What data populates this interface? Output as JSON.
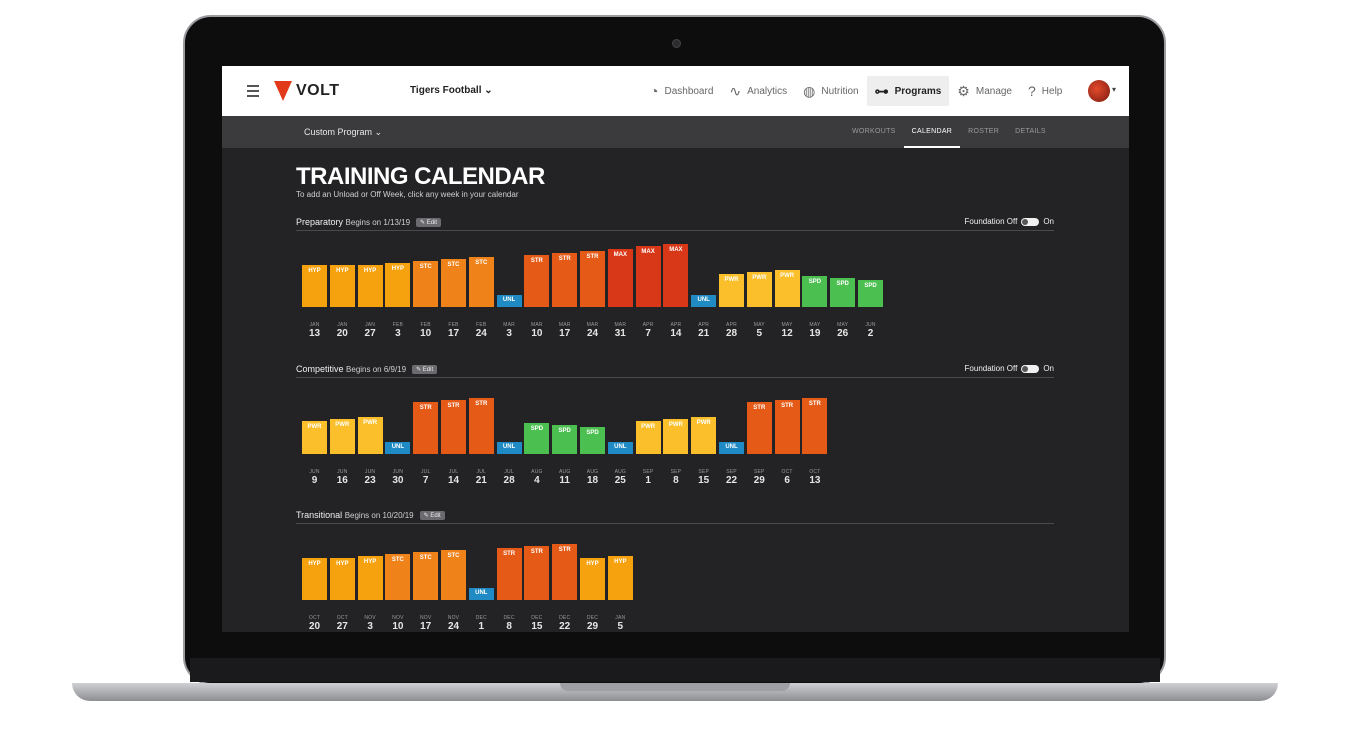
{
  "nav": {
    "brand": "VOLT",
    "team": "Tigers Football ⌄",
    "items": [
      {
        "label": "Dashboard",
        "icon": "◔",
        "name": "dashboard"
      },
      {
        "label": "Analytics",
        "icon": "∿",
        "name": "analytics"
      },
      {
        "label": "Nutrition",
        "icon": "◍",
        "name": "nutrition"
      },
      {
        "label": "Programs",
        "icon": "⊶",
        "name": "programs"
      },
      {
        "label": "Manage",
        "icon": "⚙",
        "name": "manage"
      },
      {
        "label": "Help",
        "icon": "?",
        "name": "help"
      }
    ],
    "active": "Programs"
  },
  "subnav": {
    "program": "Custom Program ⌄",
    "tabs": [
      "WORKOUTS",
      "CALENDAR",
      "ROSTER",
      "DETAILS"
    ],
    "active_tab": "CALENDAR"
  },
  "page": {
    "title": "TRAINING CALENDAR",
    "subtitle": "To add an Unload or Off Week, click any week in your calendar"
  },
  "ui": {
    "edit": "Edit",
    "foundation_off": "Foundation Off",
    "foundation_on": "On"
  },
  "colors": {
    "HYP": "#f6a20f",
    "STC": "#f0821a",
    "STR": "#e55a16",
    "MAX": "#d93818",
    "PWR": "#fbbf2b",
    "SPD": "#4cbf51",
    "UNL": "#1f8ac4"
  },
  "phases": [
    {
      "name": "Preparatory",
      "begins": "Begins on 1/13/19",
      "show_foundation": true,
      "weeks": [
        {
          "type": "HYP",
          "level": 42,
          "month": "JAN",
          "day": "13"
        },
        {
          "type": "HYP",
          "level": 42,
          "month": "JAN",
          "day": "20"
        },
        {
          "type": "HYP",
          "level": 42,
          "month": "JAN",
          "day": "27"
        },
        {
          "type": "HYP",
          "level": 44,
          "month": "FEB",
          "day": "3"
        },
        {
          "type": "STC",
          "level": 46,
          "month": "FEB",
          "day": "10"
        },
        {
          "type": "STC",
          "level": 48,
          "month": "FEB",
          "day": "17"
        },
        {
          "type": "STC",
          "level": 50,
          "month": "FEB",
          "day": "24"
        },
        {
          "type": "UNL",
          "level": 12,
          "month": "MAR",
          "day": "3"
        },
        {
          "type": "STR",
          "level": 52,
          "month": "MAR",
          "day": "10"
        },
        {
          "type": "STR",
          "level": 54,
          "month": "MAR",
          "day": "17"
        },
        {
          "type": "STR",
          "level": 56,
          "month": "MAR",
          "day": "24"
        },
        {
          "type": "MAX",
          "level": 58,
          "month": "MAR",
          "day": "31"
        },
        {
          "type": "MAX",
          "level": 61,
          "month": "APR",
          "day": "7"
        },
        {
          "type": "MAX",
          "level": 63,
          "month": "APR",
          "day": "14"
        },
        {
          "type": "UNL",
          "level": 12,
          "month": "APR",
          "day": "21"
        },
        {
          "type": "PWR",
          "level": 33,
          "month": "APR",
          "day": "28"
        },
        {
          "type": "PWR",
          "level": 35,
          "month": "MAY",
          "day": "5"
        },
        {
          "type": "PWR",
          "level": 37,
          "month": "MAY",
          "day": "12"
        },
        {
          "type": "SPD",
          "level": 31,
          "month": "MAY",
          "day": "19"
        },
        {
          "type": "SPD",
          "level": 29,
          "month": "MAY",
          "day": "26"
        },
        {
          "type": "SPD",
          "level": 27,
          "month": "JUN",
          "day": "2"
        }
      ]
    },
    {
      "name": "Competitive",
      "begins": "Begins on 6/9/19",
      "show_foundation": true,
      "weeks": [
        {
          "type": "PWR",
          "level": 33,
          "month": "JUN",
          "day": "9"
        },
        {
          "type": "PWR",
          "level": 35,
          "month": "JUN",
          "day": "16"
        },
        {
          "type": "PWR",
          "level": 37,
          "month": "JUN",
          "day": "23"
        },
        {
          "type": "UNL",
          "level": 12,
          "month": "JUN",
          "day": "30"
        },
        {
          "type": "STR",
          "level": 52,
          "month": "JUL",
          "day": "7"
        },
        {
          "type": "STR",
          "level": 54,
          "month": "JUL",
          "day": "14"
        },
        {
          "type": "STR",
          "level": 56,
          "month": "JUL",
          "day": "21"
        },
        {
          "type": "UNL",
          "level": 12,
          "month": "JUL",
          "day": "28"
        },
        {
          "type": "SPD",
          "level": 31,
          "month": "AUG",
          "day": "4"
        },
        {
          "type": "SPD",
          "level": 29,
          "month": "AUG",
          "day": "11"
        },
        {
          "type": "SPD",
          "level": 27,
          "month": "AUG",
          "day": "18"
        },
        {
          "type": "UNL",
          "level": 12,
          "month": "AUG",
          "day": "25"
        },
        {
          "type": "PWR",
          "level": 33,
          "month": "SEP",
          "day": "1"
        },
        {
          "type": "PWR",
          "level": 35,
          "month": "SEP",
          "day": "8"
        },
        {
          "type": "PWR",
          "level": 37,
          "month": "SEP",
          "day": "15"
        },
        {
          "type": "UNL",
          "level": 12,
          "month": "SEP",
          "day": "22"
        },
        {
          "type": "STR",
          "level": 52,
          "month": "SEP",
          "day": "29"
        },
        {
          "type": "STR",
          "level": 54,
          "month": "OCT",
          "day": "6"
        },
        {
          "type": "STR",
          "level": 56,
          "month": "OCT",
          "day": "13"
        }
      ]
    },
    {
      "name": "Transitional",
      "begins": "Begins on 10/20/19",
      "show_foundation": false,
      "weeks": [
        {
          "type": "HYP",
          "level": 42,
          "month": "OCT",
          "day": "20"
        },
        {
          "type": "HYP",
          "level": 42,
          "month": "OCT",
          "day": "27"
        },
        {
          "type": "HYP",
          "level": 44,
          "month": "NOV",
          "day": "3"
        },
        {
          "type": "STC",
          "level": 46,
          "month": "NOV",
          "day": "10"
        },
        {
          "type": "STC",
          "level": 48,
          "month": "NOV",
          "day": "17"
        },
        {
          "type": "STC",
          "level": 50,
          "month": "NOV",
          "day": "24"
        },
        {
          "type": "UNL",
          "level": 12,
          "month": "DEC",
          "day": "1"
        },
        {
          "type": "STR",
          "level": 52,
          "month": "DEC",
          "day": "8"
        },
        {
          "type": "STR",
          "level": 54,
          "month": "DEC",
          "day": "15"
        },
        {
          "type": "STR",
          "level": 56,
          "month": "DEC",
          "day": "22"
        },
        {
          "type": "HYP",
          "level": 42,
          "month": "DEC",
          "day": "29"
        },
        {
          "type": "HYP",
          "level": 44,
          "month": "JAN",
          "day": "5"
        }
      ]
    }
  ]
}
